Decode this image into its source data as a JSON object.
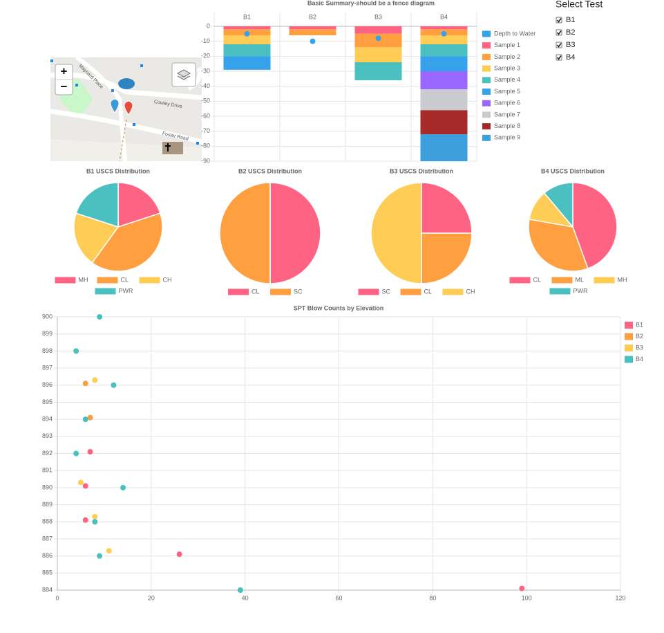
{
  "chart_data": [
    {
      "type": "bar",
      "stacked": true,
      "title": "Basic Summary-should be a fence diagram",
      "categories": [
        "B1",
        "B2",
        "B3",
        "B4"
      ],
      "ylim": [
        -90,
        0
      ],
      "yticks": [
        0,
        -10,
        -20,
        -30,
        -40,
        -50,
        -60,
        -70,
        -80,
        -90
      ],
      "grid": true,
      "legend": "right",
      "series": [
        {
          "name": "Depth to Water",
          "type": "scatter",
          "color": "#36a2eb",
          "values": [
            -5,
            -10,
            -8,
            -5
          ]
        },
        {
          "name": "Sample 1",
          "color": "#ff6384",
          "values": [
            -2,
            -2,
            -5,
            -2
          ]
        },
        {
          "name": "Sample 2",
          "color": "#ff9f40",
          "values": [
            -4,
            -4,
            -9,
            -4
          ]
        },
        {
          "name": "Sample 3",
          "color": "#ffcd56",
          "values": [
            -6,
            null,
            -10,
            -6
          ]
        },
        {
          "name": "Sample 4",
          "color": "#4bc0c0",
          "values": [
            -8,
            null,
            -12,
            -8
          ]
        },
        {
          "name": "Sample 5",
          "color": "#36a2eb",
          "values": [
            -9,
            null,
            null,
            -10
          ]
        },
        {
          "name": "Sample 6",
          "color": "#9966ff",
          "values": [
            null,
            null,
            null,
            -12
          ]
        },
        {
          "name": "Sample 7",
          "color": "#c9cbcf",
          "values": [
            null,
            null,
            null,
            -14
          ]
        },
        {
          "name": "Sample 8",
          "color": "#a62a2a",
          "values": [
            null,
            null,
            null,
            -16
          ]
        },
        {
          "name": "Sample 9",
          "color": "#3e9fdd",
          "values": [
            null,
            null,
            null,
            -18
          ]
        }
      ]
    },
    {
      "type": "pie",
      "title": "B1 USCS Distribution",
      "categories": [
        "MH",
        "CL",
        "CH",
        "PWR"
      ],
      "values": [
        1,
        2,
        1,
        1
      ],
      "colors": [
        "#ff6384",
        "#ff9f40",
        "#ffcd56",
        "#4bc0c0"
      ],
      "legend": "bottom"
    },
    {
      "type": "pie",
      "title": "B2 USCS Distribution",
      "categories": [
        "CL",
        "SC"
      ],
      "values": [
        1,
        1
      ],
      "colors": [
        "#ff6384",
        "#ff9f40"
      ],
      "legend": "bottom"
    },
    {
      "type": "pie",
      "title": "B3 USCS Distribution",
      "categories": [
        "SC",
        "CL",
        "CH"
      ],
      "values": [
        1,
        1,
        2
      ],
      "colors": [
        "#ff6384",
        "#ff9f40",
        "#ffcd56"
      ],
      "legend": "bottom"
    },
    {
      "type": "pie",
      "title": "B4 USCS Distribution",
      "categories": [
        "CL",
        "ML",
        "MH",
        "PWR"
      ],
      "values": [
        4,
        3,
        1,
        1
      ],
      "colors": [
        "#ff6384",
        "#ff9f40",
        "#ffcd56",
        "#4bc0c0"
      ],
      "legend": "bottom"
    },
    {
      "type": "scatter",
      "title": "SPT Blow Counts by Elevation",
      "xlim": [
        0,
        120
      ],
      "xticks": [
        0,
        20,
        40,
        60,
        80,
        100,
        120
      ],
      "ylim": [
        884,
        900
      ],
      "yticks": [
        884,
        885,
        886,
        887,
        888,
        889,
        890,
        891,
        892,
        893,
        894,
        895,
        896,
        897,
        898,
        899,
        900
      ],
      "grid": true,
      "legend": "right",
      "series": [
        {
          "name": "B1",
          "color": "#ff6384",
          "x": [
            6,
            6,
            7,
            26,
            99
          ],
          "values": [
            890.1,
            888.1,
            892.1,
            886.1,
            884.1
          ]
        },
        {
          "name": "B2",
          "color": "#ff9f40",
          "x": [
            6,
            7
          ],
          "values": [
            896.1,
            894.1
          ]
        },
        {
          "name": "B3",
          "color": "#ffcd56",
          "x": [
            8,
            5,
            8,
            11
          ],
          "values": [
            896.3,
            890.3,
            888.3,
            886.3
          ]
        },
        {
          "name": "B4",
          "color": "#4bc0c0",
          "x": [
            9,
            4,
            12,
            6,
            4,
            14,
            8,
            9,
            39
          ],
          "values": [
            900,
            898,
            896,
            894,
            892,
            890,
            888,
            886,
            884
          ]
        }
      ]
    }
  ],
  "select_test": {
    "title": "Select Test",
    "options": [
      {
        "label": "B1",
        "checked": true
      },
      {
        "label": "B2",
        "checked": true
      },
      {
        "label": "B3",
        "checked": true
      },
      {
        "label": "B4",
        "checked": true
      }
    ]
  },
  "map": {
    "zoom_in": "+",
    "zoom_out": "−",
    "streets": [
      "Maynard Place",
      "Cowley Drive",
      "Foster Road"
    ]
  }
}
